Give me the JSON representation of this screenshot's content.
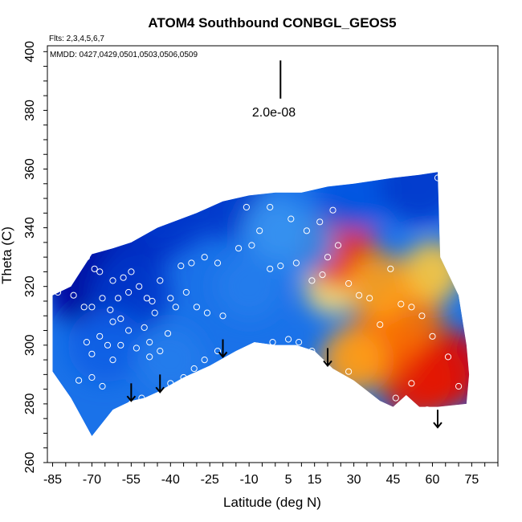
{
  "chart_data": {
    "type": "heatmap",
    "title": "ATOM4 Southbound CONBGL_GEOS5",
    "annotations": {
      "flights": "Flts: 2,3,4,5,6,7",
      "dates": "MMDD: 0427,0429,0501,0503,0506,0509",
      "scale_bar_label": "2.0e-08"
    },
    "xlabel": "Latitude (deg N)",
    "ylabel": "Theta (C)",
    "xlim": [
      -87,
      85
    ],
    "ylim": [
      260,
      402
    ],
    "x_ticks": [
      "-85",
      "-70",
      "-55",
      "-40",
      "-25",
      "-10",
      "5",
      "15",
      "30",
      "45",
      "60",
      "75"
    ],
    "x_tick_values": [
      -85,
      -70,
      -55,
      -40,
      -25,
      -10,
      5,
      15,
      30,
      45,
      60,
      75
    ],
    "y_ticks": [
      "260",
      "280",
      "300",
      "320",
      "340",
      "360",
      "380",
      "400"
    ],
    "y_tick_values": [
      260,
      280,
      300,
      320,
      340,
      360,
      380,
      400
    ],
    "grid": false,
    "colorscale": [
      "#00009a",
      "#0050e0",
      "#2e8cf0",
      "#9ccaf7",
      "#ffffff",
      "#ffd040",
      "#ff8000",
      "#e00000"
    ],
    "field": {
      "boundary_top": [
        [
          -85,
          317
        ],
        [
          -78,
          320
        ],
        [
          -70,
          331
        ],
        [
          -62,
          333
        ],
        [
          -55,
          335
        ],
        [
          -45,
          340
        ],
        [
          -30,
          345
        ],
        [
          -20,
          349
        ],
        [
          -10,
          351
        ],
        [
          0,
          352
        ],
        [
          10,
          352
        ],
        [
          20,
          354
        ],
        [
          30,
          355
        ],
        [
          45,
          357
        ],
        [
          55,
          358
        ],
        [
          62,
          359
        ],
        [
          63,
          330
        ],
        [
          70,
          317
        ],
        [
          73,
          300
        ],
        [
          74,
          290
        ],
        [
          73,
          280
        ]
      ],
      "boundary_bottom": [
        [
          -85,
          291
        ],
        [
          -78,
          282
        ],
        [
          -70,
          269
        ],
        [
          -62,
          278
        ],
        [
          -55,
          281
        ],
        [
          -50,
          282
        ],
        [
          -45,
          284
        ],
        [
          -35,
          289
        ],
        [
          -25,
          293
        ],
        [
          -15,
          298
        ],
        [
          -8,
          301
        ],
        [
          0,
          300
        ],
        [
          8,
          300
        ],
        [
          15,
          298
        ],
        [
          22,
          292
        ],
        [
          30,
          288
        ],
        [
          40,
          281
        ],
        [
          45,
          279
        ],
        [
          50,
          283
        ],
        [
          55,
          279
        ],
        [
          62,
          279
        ],
        [
          73,
          280
        ]
      ],
      "hotspots": [
        {
          "x": 65,
          "y": 292,
          "value": 1.0
        },
        {
          "x": 55,
          "y": 288,
          "value": 0.95
        },
        {
          "x": 40,
          "y": 300,
          "value": 0.8
        },
        {
          "x": 50,
          "y": 310,
          "value": 0.75
        },
        {
          "x": 30,
          "y": 295,
          "value": 0.6
        },
        {
          "x": 22,
          "y": 320,
          "value": 0.35
        },
        {
          "x": 24,
          "y": 333,
          "value": 0.9
        },
        {
          "x": 60,
          "y": 325,
          "value": 0.45
        },
        {
          "x": 40,
          "y": 320,
          "value": 0.6
        },
        {
          "x": -70,
          "y": 320,
          "value": -1.0
        },
        {
          "x": -62,
          "y": 328,
          "value": -0.95
        },
        {
          "x": -50,
          "y": 340,
          "value": -0.85
        },
        {
          "x": -55,
          "y": 318,
          "value": -0.8
        },
        {
          "x": -40,
          "y": 345,
          "value": -0.8
        },
        {
          "x": -20,
          "y": 350,
          "value": -0.8
        },
        {
          "x": 30,
          "y": 352,
          "value": -0.7
        },
        {
          "x": 55,
          "y": 355,
          "value": -0.8
        },
        {
          "x": -65,
          "y": 300,
          "value": -0.65
        },
        {
          "x": -40,
          "y": 295,
          "value": -0.5
        },
        {
          "x": -10,
          "y": 320,
          "value": -0.5
        },
        {
          "x": 10,
          "y": 335,
          "value": -0.45
        },
        {
          "x": 0,
          "y": 340,
          "value": -0.4
        }
      ]
    },
    "observations": [
      [
        -83,
        318
      ],
      [
        -77,
        317
      ],
      [
        -73,
        313
      ],
      [
        -70,
        313
      ],
      [
        -67,
        325
      ],
      [
        -66,
        316
      ],
      [
        -63,
        312
      ],
      [
        -60,
        316
      ],
      [
        -58,
        323
      ],
      [
        -55,
        325
      ],
      [
        -52,
        320
      ],
      [
        -49,
        316
      ],
      [
        -47,
        315
      ],
      [
        -44,
        322
      ],
      [
        -40,
        316
      ],
      [
        -36,
        327
      ],
      [
        -32,
        328
      ],
      [
        -27,
        330
      ],
      [
        -22,
        328
      ],
      [
        -14,
        333
      ],
      [
        -9,
        334
      ],
      [
        -6,
        339
      ],
      [
        -2,
        326
      ],
      [
        2,
        327
      ],
      [
        8,
        328
      ],
      [
        14,
        322
      ],
      [
        18,
        324
      ],
      [
        20,
        330
      ],
      [
        24,
        334
      ],
      [
        28,
        321
      ],
      [
        32,
        317
      ],
      [
        36,
        316
      ],
      [
        40,
        307
      ],
      [
        44,
        326
      ],
      [
        48,
        314
      ],
      [
        52,
        313
      ],
      [
        56,
        310
      ],
      [
        60,
        303
      ],
      [
        66,
        296
      ],
      [
        70,
        286
      ],
      [
        -75,
        288
      ],
      [
        -70,
        289
      ],
      [
        -66,
        286
      ],
      [
        -62,
        295
      ],
      [
        -59,
        300
      ],
      [
        -56,
        305
      ],
      [
        -53,
        299
      ],
      [
        -48,
        296
      ],
      [
        -44,
        298
      ],
      [
        -40,
        287
      ],
      [
        -35,
        289
      ],
      [
        -31,
        292
      ],
      [
        -27,
        295
      ],
      [
        -22,
        298
      ],
      [
        -1,
        301
      ],
      [
        5,
        302
      ],
      [
        9,
        301
      ],
      [
        14,
        298
      ],
      [
        28,
        291
      ],
      [
        46,
        282
      ],
      [
        52,
        287
      ],
      [
        58,
        278
      ],
      [
        -51,
        282
      ],
      [
        -55,
        280
      ],
      [
        -64,
        300
      ],
      [
        -67,
        303
      ],
      [
        -70,
        297
      ],
      [
        -72,
        301
      ],
      [
        -62,
        308
      ],
      [
        -59,
        309
      ],
      [
        -50,
        306
      ],
      [
        -46,
        311
      ],
      [
        -38,
        313
      ],
      [
        -34,
        318
      ],
      [
        -30,
        313
      ],
      [
        -26,
        311
      ],
      [
        -20,
        310
      ],
      [
        -11,
        347
      ],
      [
        -2,
        347
      ],
      [
        6,
        343
      ],
      [
        12,
        339
      ],
      [
        17,
        342
      ],
      [
        22,
        346
      ],
      [
        62,
        357
      ],
      [
        -41,
        304
      ],
      [
        -48,
        301
      ],
      [
        -56,
        318
      ],
      [
        -62,
        322
      ],
      [
        -69,
        326
      ],
      [
        -72,
        330
      ]
    ],
    "arrows": [
      {
        "x": -55,
        "y_top": 287,
        "y_bottom": 281
      },
      {
        "x": -44,
        "y_top": 290,
        "y_bottom": 284
      },
      {
        "x": -20,
        "y_top": 302,
        "y_bottom": 296
      },
      {
        "x": 20,
        "y_top": 299,
        "y_bottom": 293
      },
      {
        "x": 62,
        "y_top": 278,
        "y_bottom": 272
      }
    ],
    "scale_bar": {
      "x": 2,
      "y_top": 397,
      "y_bottom": 384
    }
  }
}
